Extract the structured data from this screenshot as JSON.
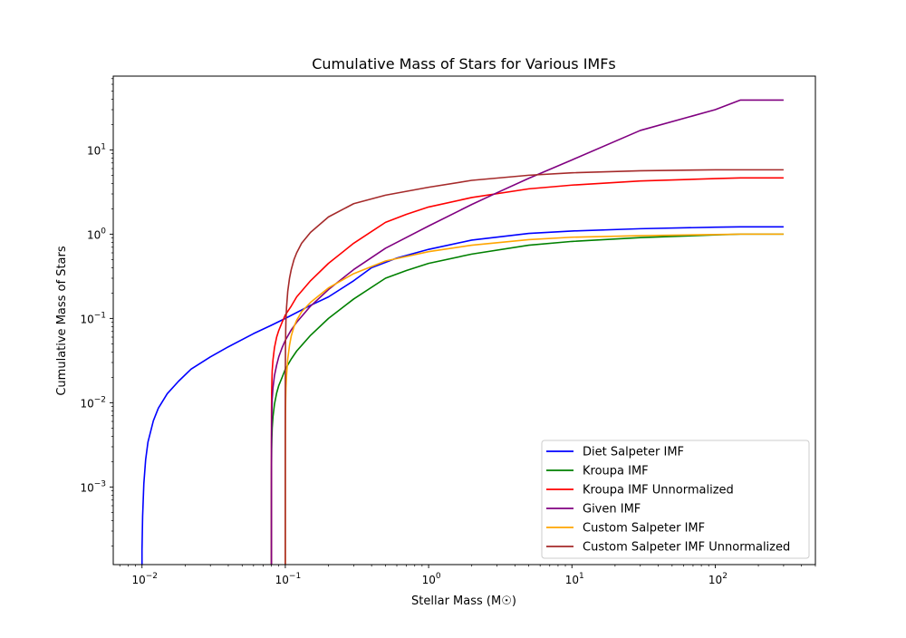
{
  "chart_data": {
    "type": "line",
    "title": "Cumulative Mass of Stars for Various IMFs",
    "xlabel": "Stellar Mass (M☉)",
    "ylabel": "Cumulative Mass of Stars",
    "xscale": "log",
    "yscale": "log",
    "xlim": [
      0.0063,
      500
    ],
    "ylim": [
      0.00012,
      75
    ],
    "xticks": [
      {
        "value": 0.01,
        "base": "10",
        "exp": "−2"
      },
      {
        "value": 0.1,
        "base": "10",
        "exp": "−1"
      },
      {
        "value": 1,
        "base": "10",
        "exp": "0"
      },
      {
        "value": 10,
        "base": "10",
        "exp": "1"
      },
      {
        "value": 100,
        "base": "10",
        "exp": "2"
      }
    ],
    "yticks": [
      {
        "value": 0.001,
        "base": "10",
        "exp": "−3"
      },
      {
        "value": 0.01,
        "base": "10",
        "exp": "−2"
      },
      {
        "value": 0.1,
        "base": "10",
        "exp": "−1"
      },
      {
        "value": 1,
        "base": "10",
        "exp": "0"
      },
      {
        "value": 10,
        "base": "10",
        "exp": "1"
      }
    ],
    "grid": false,
    "legend_position": "lower-right",
    "series": [
      {
        "name": "Diet Salpeter IMF",
        "color": "#0000ff",
        "x": [
          0.01,
          0.01,
          0.0101,
          0.0103,
          0.0106,
          0.011,
          0.012,
          0.013,
          0.015,
          0.018,
          0.022,
          0.03,
          0.04,
          0.06,
          0.08,
          0.1,
          0.15,
          0.2,
          0.3,
          0.4,
          0.6,
          1,
          2,
          5,
          10,
          30,
          100,
          150,
          300
        ],
        "y": [
          0.00012,
          0.00018,
          0.00045,
          0.0011,
          0.0021,
          0.0034,
          0.0061,
          0.0086,
          0.0128,
          0.018,
          0.025,
          0.035,
          0.046,
          0.066,
          0.083,
          0.1,
          0.143,
          0.18,
          0.28,
          0.4,
          0.52,
          0.66,
          0.85,
          1.02,
          1.09,
          1.16,
          1.21,
          1.22,
          1.22
        ]
      },
      {
        "name": "Kroupa IMF",
        "color": "#008000",
        "x": [
          0.08,
          0.08,
          0.0801,
          0.0803,
          0.0806,
          0.081,
          0.082,
          0.084,
          0.087,
          0.09,
          0.095,
          0.1,
          0.11,
          0.12,
          0.15,
          0.2,
          0.3,
          0.5,
          0.7,
          1,
          2,
          5,
          10,
          30,
          100,
          150,
          300
        ],
        "y": [
          0.00012,
          0.0007,
          0.0017,
          0.0028,
          0.0039,
          0.005,
          0.0068,
          0.0096,
          0.013,
          0.016,
          0.02,
          0.025,
          0.033,
          0.041,
          0.063,
          0.1,
          0.17,
          0.3,
          0.37,
          0.45,
          0.58,
          0.74,
          0.82,
          0.91,
          0.98,
          1.0,
          1.0
        ]
      },
      {
        "name": "Kroupa IMF Unnormalized",
        "color": "#ff0000",
        "x": [
          0.08,
          0.08,
          0.0801,
          0.0803,
          0.0806,
          0.081,
          0.082,
          0.084,
          0.087,
          0.09,
          0.095,
          0.1,
          0.11,
          0.12,
          0.15,
          0.2,
          0.3,
          0.5,
          0.7,
          1,
          2,
          5,
          10,
          30,
          100,
          150,
          300
        ],
        "y": [
          0.00012,
          0.0033,
          0.008,
          0.013,
          0.018,
          0.024,
          0.032,
          0.045,
          0.06,
          0.072,
          0.09,
          0.11,
          0.14,
          0.18,
          0.28,
          0.45,
          0.78,
          1.38,
          1.72,
          2.1,
          2.72,
          3.45,
          3.82,
          4.28,
          4.56,
          4.65,
          4.65
        ]
      },
      {
        "name": "Given IMF",
        "color": "#800080",
        "x": [
          0.08,
          0.08,
          0.0801,
          0.0803,
          0.0806,
          0.081,
          0.082,
          0.084,
          0.087,
          0.09,
          0.095,
          0.1,
          0.11,
          0.12,
          0.15,
          0.2,
          0.3,
          0.5,
          1,
          2,
          3,
          5,
          10,
          30,
          100,
          150,
          300
        ],
        "y": [
          0.00012,
          0.0013,
          0.0033,
          0.0055,
          0.008,
          0.011,
          0.015,
          0.021,
          0.028,
          0.035,
          0.045,
          0.055,
          0.073,
          0.09,
          0.14,
          0.22,
          0.38,
          0.68,
          1.25,
          2.25,
          3.1,
          4.6,
          7.6,
          17,
          30,
          39,
          39
        ]
      },
      {
        "name": "Custom Salpeter IMF",
        "color": "#ffa500",
        "x": [
          0.1,
          0.1,
          0.1001,
          0.1003,
          0.1006,
          0.101,
          0.102,
          0.104,
          0.107,
          0.11,
          0.115,
          0.12,
          0.13,
          0.15,
          0.2,
          0.3,
          0.5,
          1,
          2,
          5,
          10,
          30,
          100,
          150,
          300
        ],
        "y": [
          0.00012,
          0.0018,
          0.0045,
          0.0075,
          0.011,
          0.015,
          0.021,
          0.033,
          0.048,
          0.062,
          0.08,
          0.095,
          0.12,
          0.155,
          0.23,
          0.34,
          0.48,
          0.62,
          0.74,
          0.86,
          0.92,
          0.96,
          0.99,
          1.0,
          1.0
        ]
      },
      {
        "name": "Custom Salpeter IMF Unnormalized",
        "color": "#a52a2a",
        "x": [
          0.1,
          0.1,
          0.1001,
          0.1003,
          0.1006,
          0.101,
          0.102,
          0.104,
          0.107,
          0.11,
          0.115,
          0.12,
          0.13,
          0.15,
          0.2,
          0.3,
          0.5,
          1,
          2,
          5,
          10,
          30,
          100,
          150,
          300
        ],
        "y": [
          0.00012,
          0.01,
          0.026,
          0.045,
          0.068,
          0.094,
          0.135,
          0.21,
          0.3,
          0.38,
          0.5,
          0.6,
          0.78,
          1.05,
          1.6,
          2.3,
          2.9,
          3.6,
          4.35,
          5.0,
          5.35,
          5.65,
          5.8,
          5.8,
          5.8
        ]
      }
    ]
  }
}
